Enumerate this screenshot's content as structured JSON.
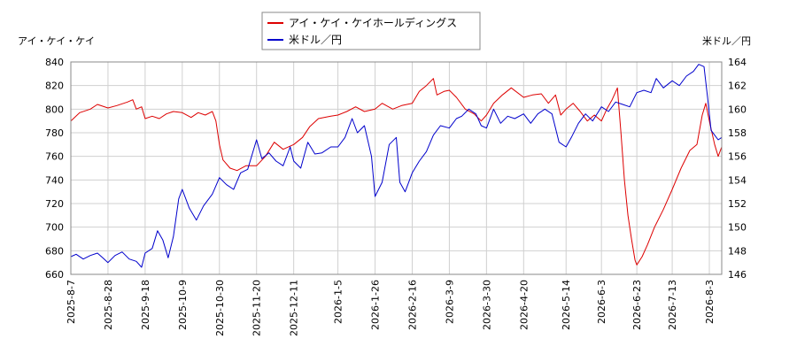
{
  "chart_data": {
    "type": "line",
    "title": "",
    "left_axis_label": "アイ・ケイ・ケイ",
    "right_axis_label": "米ドル／円",
    "left_ylim": [
      660,
      840
    ],
    "left_ticks": [
      660,
      680,
      700,
      720,
      740,
      760,
      780,
      800,
      820,
      840
    ],
    "right_ylim": [
      146,
      164
    ],
    "right_ticks": [
      146,
      148,
      150,
      152,
      154,
      156,
      158,
      160,
      162,
      164
    ],
    "x_range": [
      "2025-08-07",
      "2026-08-10"
    ],
    "x_ticks": [
      "2025-8-7",
      "2025-8-28",
      "2025-9-18",
      "2025-10-9",
      "2025-10-30",
      "2025-11-20",
      "2025-12-11",
      "2026-1-5",
      "2026-1-26",
      "2026-2-16",
      "2026-3-9",
      "2026-3-30",
      "2026-4-20",
      "2026-5-14",
      "2026-6-3",
      "2026-6-23",
      "2026-7-13",
      "2026-8-3"
    ],
    "grid": true,
    "legend_position": "top-center",
    "series": [
      {
        "name": "アイ・ケイ・ケイホールディングス",
        "axis": "left",
        "color": "#dd0000",
        "points": [
          [
            "2025-08-07",
            790
          ],
          [
            "2025-08-12",
            797
          ],
          [
            "2025-08-18",
            800
          ],
          [
            "2025-08-22",
            804
          ],
          [
            "2025-08-28",
            801
          ],
          [
            "2025-09-02",
            803
          ],
          [
            "2025-09-08",
            806
          ],
          [
            "2025-09-11",
            808
          ],
          [
            "2025-09-13",
            800
          ],
          [
            "2025-09-16",
            802
          ],
          [
            "2025-09-18",
            792
          ],
          [
            "2025-09-22",
            794
          ],
          [
            "2025-09-26",
            792
          ],
          [
            "2025-09-30",
            796
          ],
          [
            "2025-10-04",
            798
          ],
          [
            "2025-10-09",
            797
          ],
          [
            "2025-10-14",
            793
          ],
          [
            "2025-10-18",
            797
          ],
          [
            "2025-10-22",
            795
          ],
          [
            "2025-10-26",
            798
          ],
          [
            "2025-10-28",
            790
          ],
          [
            "2025-10-30",
            770
          ],
          [
            "2025-11-01",
            757
          ],
          [
            "2025-11-05",
            750
          ],
          [
            "2025-11-09",
            748
          ],
          [
            "2025-11-14",
            752
          ],
          [
            "2025-11-20",
            752
          ],
          [
            "2025-11-25",
            760
          ],
          [
            "2025-11-30",
            772
          ],
          [
            "2025-12-05",
            766
          ],
          [
            "2025-12-11",
            770
          ],
          [
            "2025-12-16",
            776
          ],
          [
            "2025-12-20",
            785
          ],
          [
            "2025-12-25",
            792
          ],
          [
            "2026-01-01",
            794
          ],
          [
            "2026-01-05",
            795
          ],
          [
            "2026-01-10",
            798
          ],
          [
            "2026-01-15",
            802
          ],
          [
            "2026-01-20",
            798
          ],
          [
            "2026-01-26",
            800
          ],
          [
            "2026-01-30",
            805
          ],
          [
            "2026-02-05",
            800
          ],
          [
            "2026-02-10",
            803
          ],
          [
            "2026-02-16",
            805
          ],
          [
            "2026-02-20",
            815
          ],
          [
            "2026-02-24",
            820
          ],
          [
            "2026-02-28",
            826
          ],
          [
            "2026-03-02",
            812
          ],
          [
            "2026-03-06",
            815
          ],
          [
            "2026-03-09",
            816
          ],
          [
            "2026-03-13",
            810
          ],
          [
            "2026-03-18",
            800
          ],
          [
            "2026-03-23",
            796
          ],
          [
            "2026-03-27",
            790
          ],
          [
            "2026-03-30",
            795
          ],
          [
            "2026-04-03",
            805
          ],
          [
            "2026-04-08",
            812
          ],
          [
            "2026-04-13",
            818
          ],
          [
            "2026-04-20",
            810
          ],
          [
            "2026-04-25",
            812
          ],
          [
            "2026-04-30",
            813
          ],
          [
            "2026-05-04",
            805
          ],
          [
            "2026-05-08",
            812
          ],
          [
            "2026-05-11",
            795
          ],
          [
            "2026-05-14",
            800
          ],
          [
            "2026-05-18",
            805
          ],
          [
            "2026-05-22",
            798
          ],
          [
            "2026-05-26",
            790
          ],
          [
            "2026-05-30",
            795
          ],
          [
            "2026-06-03",
            790
          ],
          [
            "2026-06-06",
            800
          ],
          [
            "2026-06-09",
            808
          ],
          [
            "2026-06-12",
            818
          ],
          [
            "2026-06-14",
            780
          ],
          [
            "2026-06-16",
            740
          ],
          [
            "2026-06-18",
            710
          ],
          [
            "2026-06-20",
            690
          ],
          [
            "2026-06-22",
            672
          ],
          [
            "2026-06-23",
            668
          ],
          [
            "2026-06-26",
            675
          ],
          [
            "2026-06-29",
            685
          ],
          [
            "2026-07-03",
            700
          ],
          [
            "2026-07-08",
            715
          ],
          [
            "2026-07-13",
            732
          ],
          [
            "2026-07-18",
            750
          ],
          [
            "2026-07-23",
            765
          ],
          [
            "2026-07-27",
            770
          ],
          [
            "2026-07-30",
            795
          ],
          [
            "2026-08-01",
            805
          ],
          [
            "2026-08-03",
            790
          ],
          [
            "2026-08-06",
            770
          ],
          [
            "2026-08-08",
            760
          ],
          [
            "2026-08-10",
            768
          ]
        ]
      },
      {
        "name": "米ドル／円",
        "axis": "right",
        "color": "#0000cc",
        "points": [
          [
            "2025-08-07",
            147.5
          ],
          [
            "2025-08-10",
            147.7
          ],
          [
            "2025-08-14",
            147.3
          ],
          [
            "2025-08-18",
            147.6
          ],
          [
            "2025-08-22",
            147.8
          ],
          [
            "2025-08-25",
            147.4
          ],
          [
            "2025-08-28",
            147.0
          ],
          [
            "2025-09-01",
            147.6
          ],
          [
            "2025-09-05",
            147.9
          ],
          [
            "2025-09-09",
            147.3
          ],
          [
            "2025-09-13",
            147.1
          ],
          [
            "2025-09-16",
            146.6
          ],
          [
            "2025-09-18",
            147.8
          ],
          [
            "2025-09-22",
            148.2
          ],
          [
            "2025-09-25",
            149.7
          ],
          [
            "2025-09-28",
            148.9
          ],
          [
            "2025-10-01",
            147.4
          ],
          [
            "2025-10-04",
            149.2
          ],
          [
            "2025-10-07",
            152.4
          ],
          [
            "2025-10-09",
            153.2
          ],
          [
            "2025-10-13",
            151.6
          ],
          [
            "2025-10-17",
            150.6
          ],
          [
            "2025-10-21",
            151.8
          ],
          [
            "2025-10-26",
            152.8
          ],
          [
            "2025-10-30",
            154.2
          ],
          [
            "2025-11-03",
            153.6
          ],
          [
            "2025-11-07",
            153.2
          ],
          [
            "2025-11-11",
            154.6
          ],
          [
            "2025-11-15",
            154.9
          ],
          [
            "2025-11-20",
            157.4
          ],
          [
            "2025-11-23",
            155.8
          ],
          [
            "2025-11-27",
            156.3
          ],
          [
            "2025-12-01",
            155.6
          ],
          [
            "2025-12-05",
            155.2
          ],
          [
            "2025-12-09",
            156.8
          ],
          [
            "2025-12-11",
            155.6
          ],
          [
            "2025-12-15",
            155.0
          ],
          [
            "2025-12-19",
            157.2
          ],
          [
            "2025-12-23",
            156.2
          ],
          [
            "2025-12-27",
            156.3
          ],
          [
            "2026-01-01",
            156.8
          ],
          [
            "2026-01-05",
            156.8
          ],
          [
            "2026-01-09",
            157.6
          ],
          [
            "2026-01-13",
            159.2
          ],
          [
            "2026-01-16",
            158.0
          ],
          [
            "2026-01-20",
            158.6
          ],
          [
            "2026-01-24",
            156.0
          ],
          [
            "2026-01-26",
            152.6
          ],
          [
            "2026-01-30",
            153.8
          ],
          [
            "2026-02-03",
            157.0
          ],
          [
            "2026-02-07",
            157.6
          ],
          [
            "2026-02-09",
            153.8
          ],
          [
            "2026-02-12",
            153.0
          ],
          [
            "2026-02-16",
            154.6
          ],
          [
            "2026-02-20",
            155.6
          ],
          [
            "2026-02-24",
            156.4
          ],
          [
            "2026-02-28",
            157.8
          ],
          [
            "2026-03-04",
            158.6
          ],
          [
            "2026-03-09",
            158.4
          ],
          [
            "2026-03-13",
            159.2
          ],
          [
            "2026-03-16",
            159.4
          ],
          [
            "2026-03-20",
            160.0
          ],
          [
            "2026-03-24",
            159.6
          ],
          [
            "2026-03-27",
            158.6
          ],
          [
            "2026-03-30",
            158.4
          ],
          [
            "2026-04-03",
            160.0
          ],
          [
            "2026-04-07",
            158.8
          ],
          [
            "2026-04-11",
            159.4
          ],
          [
            "2026-04-15",
            159.2
          ],
          [
            "2026-04-20",
            159.6
          ],
          [
            "2026-04-24",
            158.8
          ],
          [
            "2026-04-28",
            159.6
          ],
          [
            "2026-05-02",
            160.0
          ],
          [
            "2026-05-06",
            159.6
          ],
          [
            "2026-05-10",
            157.2
          ],
          [
            "2026-05-14",
            156.8
          ],
          [
            "2026-05-17",
            157.6
          ],
          [
            "2026-05-21",
            158.8
          ],
          [
            "2026-05-25",
            159.6
          ],
          [
            "2026-05-29",
            159.0
          ],
          [
            "2026-06-03",
            160.2
          ],
          [
            "2026-06-07",
            159.8
          ],
          [
            "2026-06-11",
            160.6
          ],
          [
            "2026-06-15",
            160.4
          ],
          [
            "2026-06-19",
            160.2
          ],
          [
            "2026-06-23",
            161.4
          ],
          [
            "2026-06-27",
            161.6
          ],
          [
            "2026-07-01",
            161.4
          ],
          [
            "2026-07-04",
            162.6
          ],
          [
            "2026-07-08",
            161.8
          ],
          [
            "2026-07-13",
            162.4
          ],
          [
            "2026-07-17",
            162.0
          ],
          [
            "2026-07-21",
            162.8
          ],
          [
            "2026-07-25",
            163.2
          ],
          [
            "2026-07-28",
            163.8
          ],
          [
            "2026-07-31",
            163.6
          ],
          [
            "2026-08-02",
            161.0
          ],
          [
            "2026-08-04",
            158.2
          ],
          [
            "2026-08-06",
            157.8
          ],
          [
            "2026-08-08",
            157.4
          ],
          [
            "2026-08-10",
            157.6
          ]
        ]
      }
    ]
  },
  "colors": {
    "grid": "#d0d0d0",
    "axis": "#888888",
    "background": "#ffffff"
  }
}
